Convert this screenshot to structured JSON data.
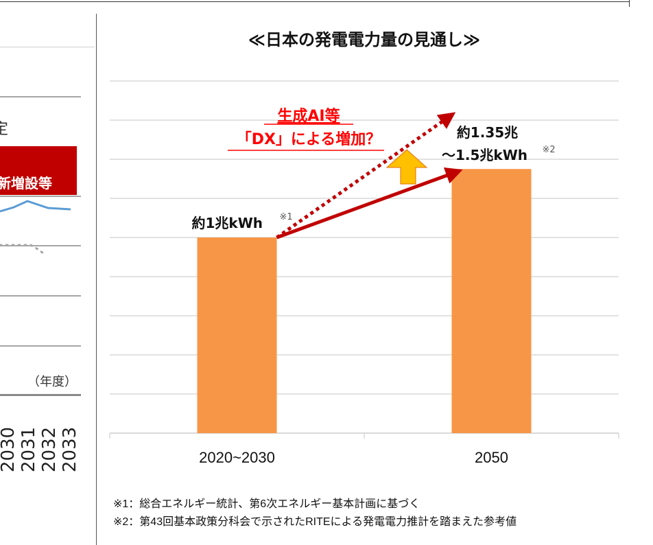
{
  "left_panel": {
    "cut_text": "定",
    "red_box_text": "新増設等",
    "year_unit": "（年度）",
    "years": [
      "2030",
      "2031",
      "2032",
      "2033"
    ]
  },
  "title": "≪日本の発電電力量の見通し≫",
  "chart_data": {
    "type": "bar",
    "title": "≪日本の発電電力量の見通し≫",
    "categories": [
      "2020~2030",
      "2050"
    ],
    "values": [
      1.0,
      1.35
    ],
    "ylim": [
      0,
      1.8
    ],
    "grid": true,
    "bar_color": "#f79646",
    "data_labels": [
      {
        "main": "約1兆kWh",
        "note": "※1"
      },
      {
        "line1": "約1.35兆",
        "line2": "～1.5兆kWh",
        "note": "※2"
      }
    ],
    "annotation": {
      "line1": "生成AI等",
      "line2": "「DX」による増加？",
      "color": "#ff0000"
    },
    "arrow_color": "#c00000",
    "up_arrow_color": "#ffc000"
  },
  "footnotes": [
    "※1：総合エネルギー統計、第6次エネルギー基本計画に基づく",
    "※2：第43回基本政策分科会で示されたRITEによる発電電力推計を踏まえた参考値"
  ]
}
